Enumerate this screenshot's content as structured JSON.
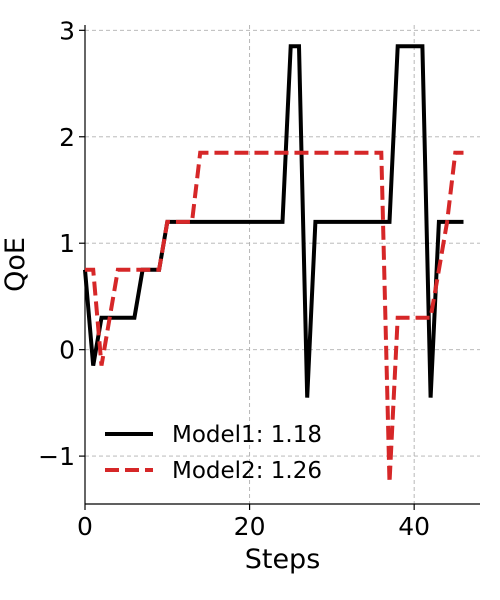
{
  "chart_data": {
    "type": "line",
    "title": "",
    "xlabel": "Steps",
    "ylabel": "QoE",
    "xlim": [
      0,
      48
    ],
    "ylim": [
      -1.45,
      3.05
    ],
    "xticks": [
      0,
      20,
      40
    ],
    "xtick_labels": [
      "0",
      "20",
      "40"
    ],
    "yticks": [
      -1,
      0,
      1,
      2,
      3
    ],
    "ytick_labels": [
      "−1",
      "0",
      "1",
      "2",
      "3"
    ],
    "grid": true,
    "legend_position": "lower-left",
    "series": [
      {
        "name": "Model1: 1.18",
        "color": "#000000",
        "style": "solid",
        "x": [
          0,
          1,
          2,
          3,
          4,
          5,
          6,
          7,
          8,
          9,
          10,
          11,
          12,
          13,
          14,
          15,
          16,
          17,
          18,
          19,
          20,
          21,
          22,
          23,
          24,
          25,
          26,
          27,
          28,
          29,
          30,
          31,
          32,
          33,
          34,
          35,
          36,
          37,
          38,
          39,
          40,
          41,
          42,
          43,
          44,
          45,
          46
        ],
        "y": [
          0.75,
          -0.15,
          0.3,
          0.3,
          0.3,
          0.3,
          0.3,
          0.75,
          0.75,
          0.75,
          1.2,
          1.2,
          1.2,
          1.2,
          1.2,
          1.2,
          1.2,
          1.2,
          1.2,
          1.2,
          1.2,
          1.2,
          1.2,
          1.2,
          1.2,
          2.85,
          2.85,
          -0.45,
          1.2,
          1.2,
          1.2,
          1.2,
          1.2,
          1.2,
          1.2,
          1.2,
          1.2,
          1.2,
          2.85,
          2.85,
          2.85,
          2.85,
          -0.45,
          1.2,
          1.2,
          1.2,
          1.2
        ]
      },
      {
        "name": "Model2: 1.26",
        "color": "#d62728",
        "style": "dashed",
        "x": [
          0,
          1,
          2,
          3,
          4,
          5,
          6,
          7,
          8,
          9,
          10,
          11,
          12,
          13,
          14,
          15,
          16,
          17,
          18,
          19,
          20,
          21,
          22,
          23,
          24,
          25,
          26,
          27,
          28,
          29,
          30,
          31,
          32,
          33,
          34,
          35,
          36,
          37,
          38,
          39,
          40,
          41,
          42,
          43,
          44,
          45,
          46
        ],
        "y": [
          0.75,
          0.75,
          -0.15,
          0.3,
          0.75,
          0.75,
          0.75,
          0.75,
          0.75,
          0.75,
          1.2,
          1.2,
          1.2,
          1.2,
          1.85,
          1.85,
          1.85,
          1.85,
          1.85,
          1.85,
          1.85,
          1.85,
          1.85,
          1.85,
          1.85,
          1.85,
          1.85,
          1.85,
          1.85,
          1.85,
          1.85,
          1.85,
          1.85,
          1.85,
          1.85,
          1.85,
          1.85,
          -1.25,
          0.3,
          0.3,
          0.3,
          0.3,
          0.3,
          0.75,
          1.2,
          1.85,
          1.85
        ]
      }
    ]
  }
}
